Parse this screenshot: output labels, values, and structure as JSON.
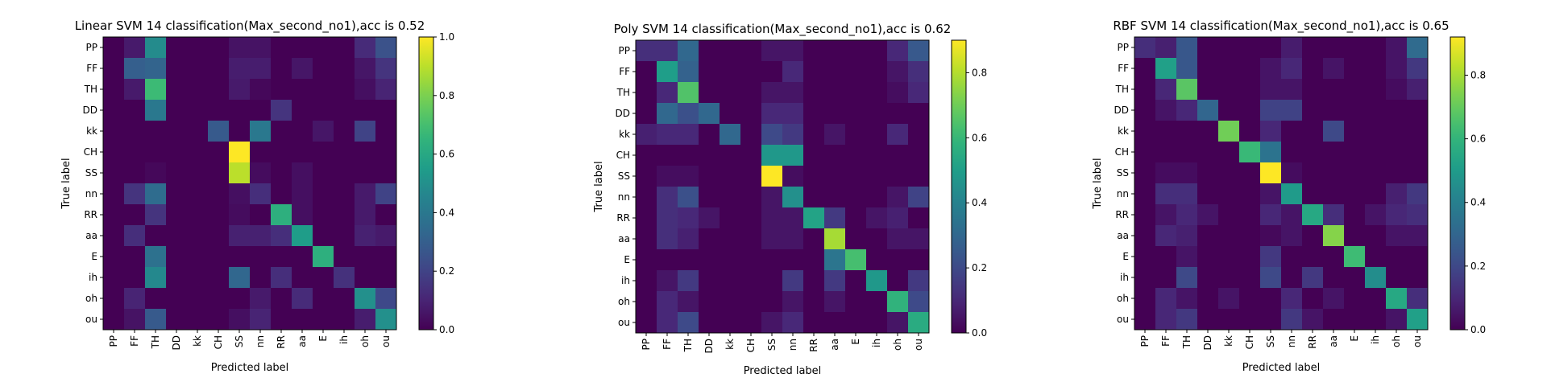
{
  "chart_data": [
    {
      "type": "heatmap",
      "title": "Linear SVM 14 classification(Max_second_no1),acc is 0.52",
      "xlabel": "Predicted label",
      "ylabel": "True label",
      "categories": [
        "PP",
        "FF",
        "TH",
        "DD",
        "kk",
        "CH",
        "SS",
        "nn",
        "RR",
        "aa",
        "E",
        "ih",
        "oh",
        "ou"
      ],
      "colorbar_range": [
        0,
        1.0
      ],
      "colorbar_ticks": [
        0.0,
        0.2,
        0.4,
        0.6,
        0.8,
        1.0
      ],
      "colorbar_tick_labels": [
        "0.0",
        "0.2",
        "0.4",
        "0.6",
        "0.8",
        "1.0"
      ],
      "colormap": "viridis",
      "values": [
        [
          0,
          0.07,
          0.48,
          0,
          0,
          0,
          0.05,
          0.05,
          0,
          0,
          0,
          0,
          0.12,
          0.25
        ],
        [
          0,
          0.3,
          0.32,
          0,
          0,
          0,
          0.08,
          0.08,
          0,
          0.06,
          0,
          0,
          0.06,
          0.15
        ],
        [
          0,
          0.07,
          0.68,
          0,
          0,
          0,
          0.07,
          0.02,
          0,
          0,
          0,
          0,
          0.04,
          0.1
        ],
        [
          0,
          0,
          0.4,
          0,
          0,
          0,
          0,
          0,
          0.15,
          0,
          0,
          0,
          0,
          0
        ],
        [
          0,
          0,
          0,
          0,
          0,
          0.28,
          0,
          0.4,
          0,
          0,
          0.06,
          0,
          0.2,
          0
        ],
        [
          0,
          0,
          0,
          0,
          0,
          0,
          1.0,
          0,
          0,
          0,
          0,
          0,
          0,
          0
        ],
        [
          0,
          0,
          0.02,
          0,
          0,
          0,
          0.9,
          0.03,
          0,
          0.04,
          0,
          0,
          0,
          0
        ],
        [
          0,
          0.15,
          0.35,
          0,
          0,
          0,
          0.04,
          0.13,
          0,
          0.04,
          0,
          0,
          0.07,
          0.2
        ],
        [
          0,
          0,
          0.15,
          0,
          0,
          0,
          0.03,
          0,
          0.63,
          0.04,
          0,
          0,
          0.07,
          0
        ],
        [
          0,
          0.13,
          0,
          0,
          0,
          0,
          0.09,
          0.09,
          0.13,
          0.55,
          0,
          0,
          0.09,
          0.07
        ],
        [
          0,
          0,
          0.37,
          0,
          0,
          0,
          0,
          0,
          0,
          0,
          0.63,
          0,
          0,
          0
        ],
        [
          0,
          0,
          0.47,
          0,
          0,
          0,
          0.33,
          0,
          0.13,
          0,
          0,
          0.14,
          0,
          0
        ],
        [
          0,
          0.1,
          0,
          0,
          0,
          0,
          0,
          0.07,
          0,
          0.12,
          0,
          0,
          0.5,
          0.22
        ],
        [
          0,
          0.05,
          0.28,
          0,
          0,
          0,
          0.04,
          0.1,
          0,
          0,
          0,
          0,
          0.08,
          0.5
        ]
      ]
    },
    {
      "type": "heatmap",
      "title": "Poly SVM 14 classification(Max_second_no1),acc is 0.62",
      "xlabel": "Predicted label",
      "ylabel": "True label",
      "categories": [
        "PP",
        "FF",
        "TH",
        "DD",
        "kk",
        "CH",
        "SS",
        "nn",
        "RR",
        "aa",
        "E",
        "ih",
        "oh",
        "ou"
      ],
      "colorbar_range": [
        0,
        0.9
      ],
      "colorbar_ticks": [
        0.0,
        0.2,
        0.4,
        0.6,
        0.8
      ],
      "colorbar_tick_labels": [
        "0.0",
        "0.2",
        "0.4",
        "0.6",
        "0.8"
      ],
      "colormap": "viridis",
      "values": [
        [
          0.12,
          0.12,
          0.3,
          0,
          0,
          0,
          0.05,
          0.05,
          0,
          0,
          0,
          0,
          0.1,
          0.25
        ],
        [
          0,
          0.5,
          0.28,
          0,
          0,
          0,
          0,
          0.1,
          0,
          0,
          0,
          0,
          0.05,
          0.12
        ],
        [
          0,
          0.1,
          0.65,
          0,
          0,
          0,
          0.05,
          0.05,
          0,
          0,
          0,
          0,
          0.03,
          0.1
        ],
        [
          0,
          0.3,
          0.22,
          0.3,
          0,
          0,
          0.1,
          0.1,
          0,
          0,
          0,
          0,
          0,
          0
        ],
        [
          0.08,
          0.1,
          0.1,
          0,
          0.3,
          0,
          0.2,
          0.15,
          0,
          0.05,
          0,
          0,
          0.1,
          0
        ],
        [
          0,
          0,
          0,
          0,
          0,
          0,
          0.48,
          0.48,
          0,
          0,
          0,
          0,
          0,
          0
        ],
        [
          0,
          0.03,
          0.03,
          0,
          0,
          0,
          0.9,
          0.03,
          0,
          0,
          0,
          0,
          0,
          0
        ],
        [
          0,
          0.12,
          0.22,
          0,
          0,
          0,
          0.05,
          0.45,
          0,
          0,
          0,
          0,
          0.05,
          0.18
        ],
        [
          0,
          0.12,
          0.1,
          0.05,
          0,
          0,
          0.05,
          0.05,
          0.52,
          0.15,
          0,
          0.05,
          0.08,
          0
        ],
        [
          0,
          0.12,
          0.08,
          0,
          0,
          0,
          0.05,
          0.05,
          0,
          0.78,
          0,
          0,
          0.05,
          0.05
        ],
        [
          0,
          0,
          0,
          0,
          0,
          0,
          0,
          0,
          0,
          0.35,
          0.63,
          0,
          0,
          0
        ],
        [
          0,
          0.05,
          0.15,
          0,
          0,
          0,
          0,
          0.15,
          0,
          0.15,
          0,
          0.48,
          0,
          0.15
        ],
        [
          0,
          0.1,
          0.05,
          0,
          0,
          0,
          0,
          0.05,
          0,
          0.05,
          0,
          0,
          0.58,
          0.2
        ],
        [
          0,
          0.1,
          0.2,
          0,
          0,
          0,
          0.05,
          0.1,
          0,
          0,
          0,
          0,
          0.05,
          0.55
        ]
      ]
    },
    {
      "type": "heatmap",
      "title": "RBF SVM 14 classification(Max_second_no1),acc is 0.65",
      "xlabel": "Predicted label",
      "ylabel": "True label",
      "categories": [
        "PP",
        "FF",
        "TH",
        "DD",
        "kk",
        "CH",
        "SS",
        "nn",
        "RR",
        "aa",
        "E",
        "ih",
        "oh",
        "ou"
      ],
      "colorbar_range": [
        0,
        0.92
      ],
      "colorbar_ticks": [
        0.0,
        0.2,
        0.4,
        0.6,
        0.8
      ],
      "colorbar_tick_labels": [
        "0.0",
        "0.2",
        "0.4",
        "0.6",
        "0.8"
      ],
      "colormap": "viridis",
      "values": [
        [
          0.12,
          0.08,
          0.25,
          0,
          0,
          0,
          0,
          0.07,
          0,
          0,
          0,
          0,
          0.05,
          0.32
        ],
        [
          0,
          0.52,
          0.25,
          0,
          0,
          0,
          0.05,
          0.1,
          0,
          0.05,
          0,
          0,
          0.05,
          0.15
        ],
        [
          0,
          0.1,
          0.68,
          0,
          0,
          0,
          0.05,
          0.05,
          0,
          0,
          0,
          0,
          0.03,
          0.08
        ],
        [
          0,
          0.05,
          0.1,
          0.3,
          0,
          0,
          0.18,
          0.18,
          0,
          0,
          0,
          0,
          0,
          0
        ],
        [
          0,
          0,
          0,
          0,
          0.72,
          0,
          0.1,
          0,
          0,
          0.2,
          0,
          0,
          0,
          0
        ],
        [
          0,
          0,
          0,
          0,
          0,
          0.62,
          0.35,
          0,
          0,
          0,
          0,
          0,
          0,
          0
        ],
        [
          0,
          0.03,
          0.03,
          0,
          0,
          0,
          0.92,
          0.03,
          0,
          0,
          0,
          0,
          0,
          0
        ],
        [
          0,
          0.12,
          0.12,
          0,
          0,
          0,
          0.05,
          0.5,
          0,
          0,
          0,
          0,
          0.08,
          0.15
        ],
        [
          0,
          0.05,
          0.1,
          0.05,
          0,
          0,
          0.1,
          0.05,
          0.55,
          0.12,
          0,
          0.05,
          0.1,
          0.12
        ],
        [
          0,
          0.1,
          0.08,
          0,
          0,
          0,
          0.02,
          0.05,
          0,
          0.75,
          0,
          0,
          0.05,
          0.05
        ],
        [
          0,
          0,
          0.05,
          0,
          0,
          0,
          0.15,
          0,
          0,
          0,
          0.63,
          0,
          0,
          0
        ],
        [
          0,
          0,
          0.2,
          0,
          0,
          0,
          0.2,
          0,
          0.15,
          0,
          0,
          0.45,
          0,
          0
        ],
        [
          0,
          0.1,
          0.05,
          0,
          0.05,
          0,
          0,
          0.1,
          0,
          0.05,
          0,
          0,
          0.55,
          0.12
        ],
        [
          0,
          0.1,
          0.15,
          0,
          0,
          0,
          0,
          0.15,
          0.05,
          0,
          0,
          0,
          0.05,
          0.52
        ]
      ]
    }
  ]
}
